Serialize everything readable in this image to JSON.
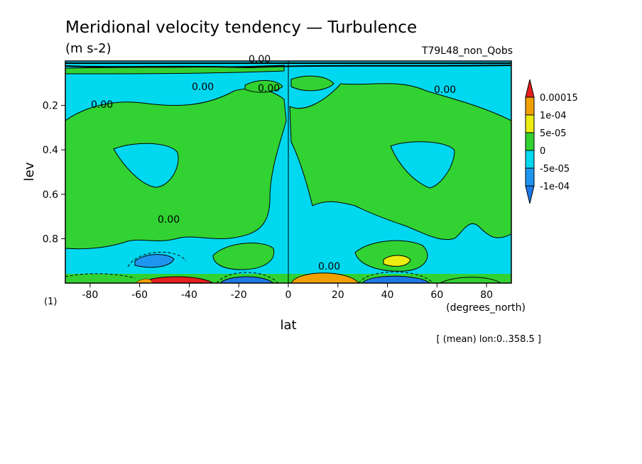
{
  "chart_data": {
    "type": "contour",
    "title": "Meridional velocity tendency — Turbulence",
    "units": "(m s-2)",
    "run_label": "T79L48_non_Qobs",
    "xlabel": "lat",
    "x_units": "(degrees_north)",
    "ylabel": "lev",
    "xlim": [
      -90,
      90
    ],
    "ylim": [
      1.0,
      0.0
    ],
    "x_ticks": [
      "-80",
      "-60",
      "-40",
      "-20",
      "0",
      "20",
      "40",
      "60",
      "80"
    ],
    "y_ticks": [
      "0.2",
      "0.4",
      "0.6",
      "0.8"
    ],
    "page_number": "(1)",
    "footnote": "[ (mean) lon:0..358.5 ]",
    "contour_label": "0.00",
    "colorbar": {
      "levels": [
        "0.00015",
        "1e-04",
        "5e-05",
        "0",
        "-5e-05",
        "-1e-04"
      ],
      "colors": {
        "below_-1e-04": "#1e78e6",
        "-1e-04_to_-5e-05": "#1e96f0",
        "-5e-05_to_0": "#00d8f0",
        "0_to_5e-05": "#32d232",
        "5e-05_to_1e-04": "#ecec10",
        "1e-04_to_0.00015": "#f0a000",
        "above_0.00015": "#e61e1e"
      }
    }
  }
}
